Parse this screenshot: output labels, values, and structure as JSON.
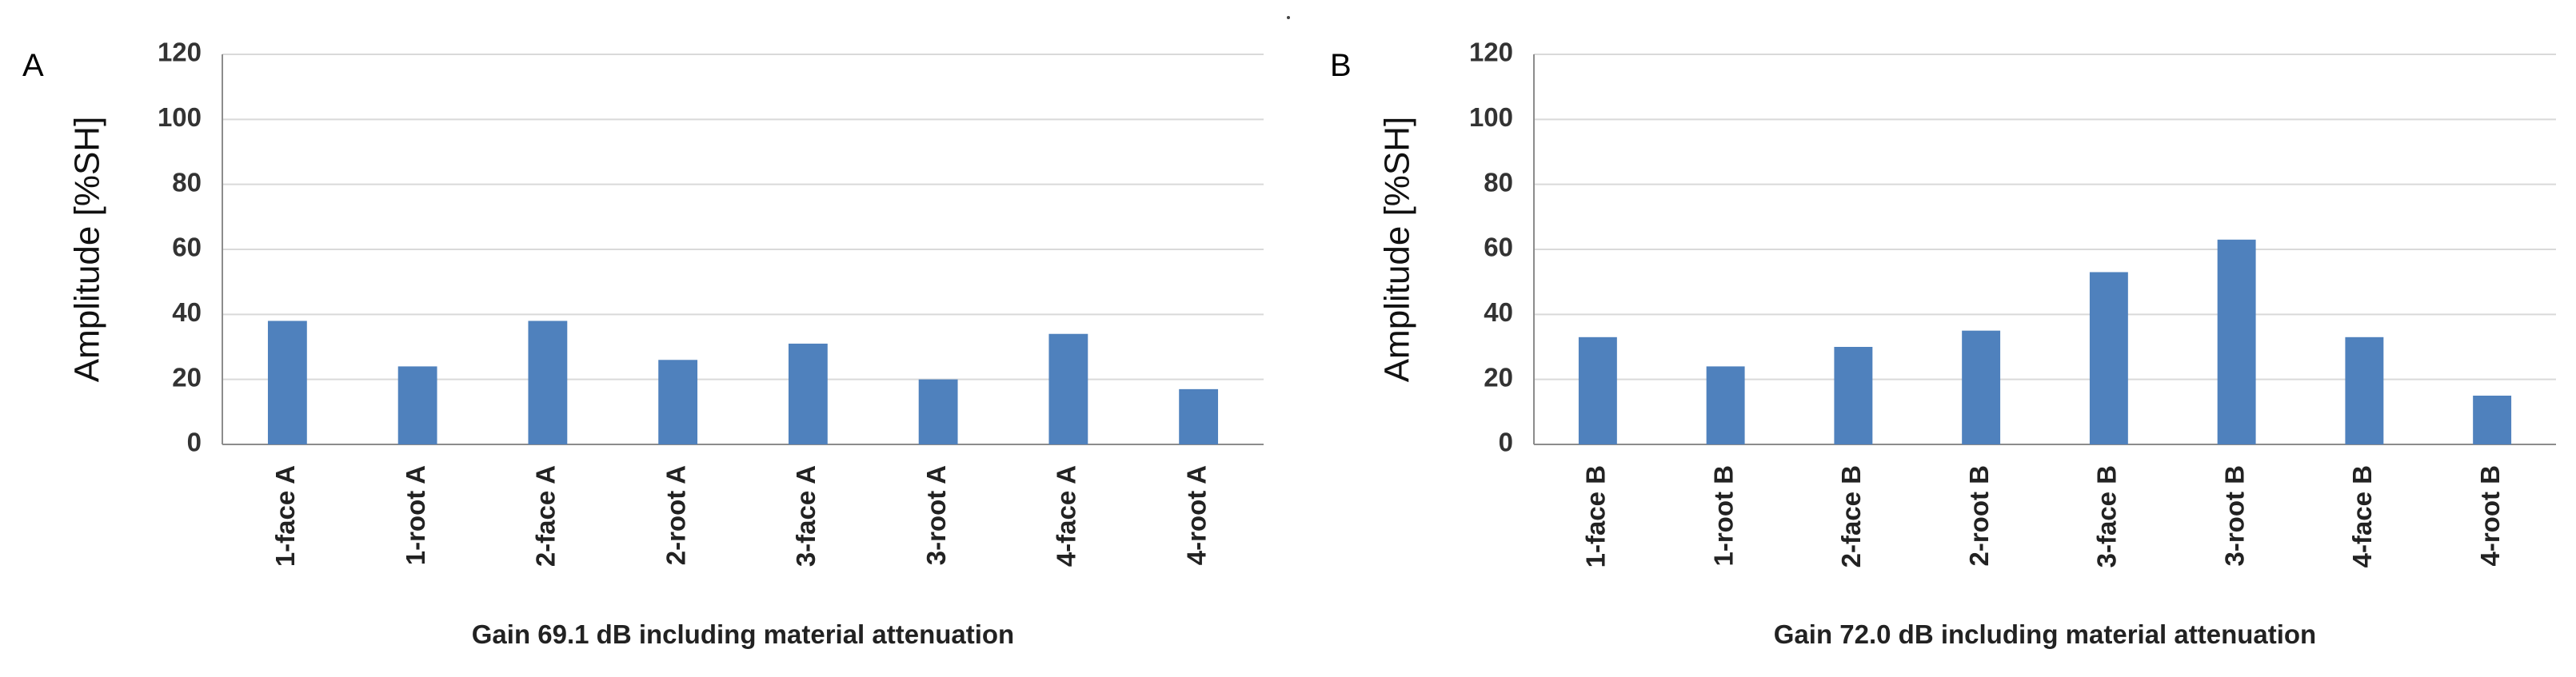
{
  "chart_data": [
    {
      "type": "bar",
      "panel_label": "A",
      "categories": [
        "1-face A",
        "1-root A",
        "2-face A",
        "2-root A",
        "3-face A",
        "3-root A",
        "4-face A",
        "4-root A"
      ],
      "values": [
        38,
        24,
        38,
        26,
        31,
        20,
        34,
        17
      ],
      "xlabel": "Gain 69.1 dB including material attenuation",
      "ylabel": "Amplitude [%SH]",
      "ylim": [
        0,
        120
      ],
      "yticks": [
        0,
        20,
        40,
        60,
        80,
        100,
        120
      ],
      "grid": true,
      "legend": "none",
      "bar_color": "#4f81bd"
    },
    {
      "type": "bar",
      "panel_label": "B",
      "categories": [
        "1-face B",
        "1-root B",
        "2-face B",
        "2-root B",
        "3-face B",
        "3-root B",
        "4-face B",
        "4-root B"
      ],
      "values": [
        33,
        24,
        30,
        35,
        53,
        63,
        33,
        15
      ],
      "xlabel": "Gain 72.0 dB including material attenuation",
      "ylabel": "Amplitude [%SH]",
      "ylim": [
        0,
        120
      ],
      "yticks": [
        0,
        20,
        40,
        60,
        80,
        100,
        120
      ],
      "grid": true,
      "legend": "none",
      "bar_color": "#4f81bd"
    }
  ]
}
